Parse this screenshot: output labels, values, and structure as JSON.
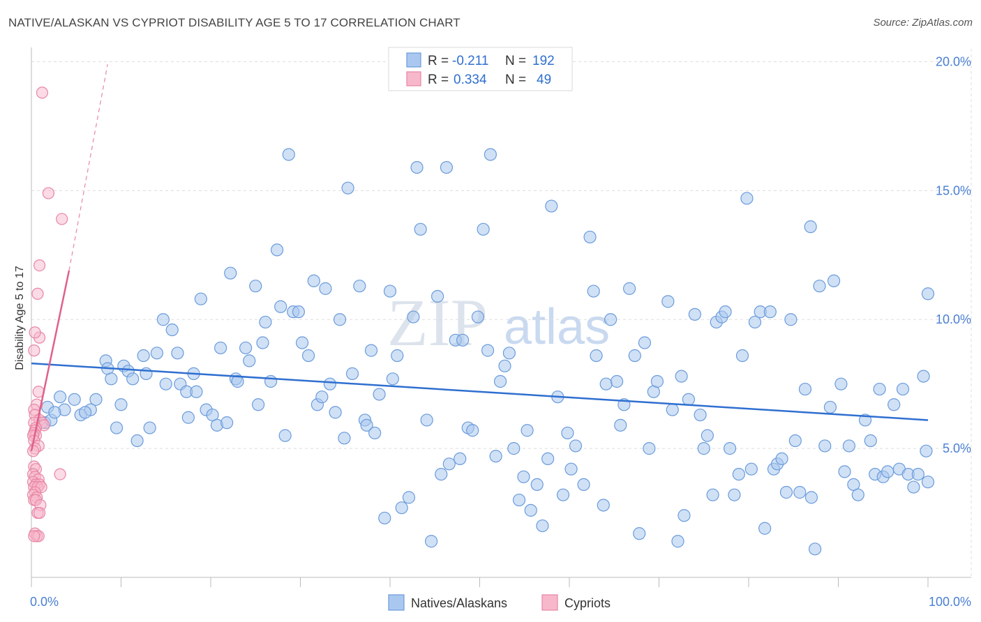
{
  "title": "NATIVE/ALASKAN VS CYPRIOT DISABILITY AGE 5 TO 17 CORRELATION CHART",
  "source": "Source: ZipAtlas.com",
  "watermark": {
    "zip": "ZIP",
    "atlas": "atlas"
  },
  "colors": {
    "native_fill": "#aac8ef",
    "native_stroke": "#6b9bdb",
    "native_line": "#2f6fd0",
    "cypriot_fill": "#f7b8cb",
    "cypriot_stroke": "#e886a4",
    "cypriot_line": "#e0608a",
    "grid": "#dddddd",
    "axis_text": "#4a7fd4"
  },
  "legend": {
    "rows": [
      {
        "r_label": "R =",
        "r_value": "-0.211",
        "n_label": "N =",
        "n_value": "192"
      },
      {
        "r_label": "R =",
        "r_value": "0.334",
        "n_label": "N =",
        "n_value": "49"
      }
    ]
  },
  "bottom_legend": [
    "Natives/Alaskans",
    "Cypriots"
  ],
  "chart_data": {
    "type": "scatter",
    "xlabel": "",
    "ylabel": "Disability Age 5 to 17",
    "xlim": [
      0,
      100
    ],
    "ylim": [
      0,
      20.5
    ],
    "x_tick_labels": [
      "0.0%",
      "100.0%"
    ],
    "y_ticks": [
      5,
      10,
      15,
      20
    ],
    "y_tick_labels": [
      "5.0%",
      "10.0%",
      "15.0%",
      "20.0%"
    ],
    "grid": true,
    "legend_placement": "top-center",
    "series": [
      {
        "name": "Natives/Alaskans",
        "R": -0.211,
        "N": 192,
        "trend": {
          "x": [
            0,
            100
          ],
          "y": [
            8.3,
            6.1
          ]
        },
        "points": [
          [
            1.8,
            6.6
          ],
          [
            3.2,
            7.0
          ],
          [
            1.5,
            6.0
          ],
          [
            2.2,
            6.1
          ],
          [
            3.7,
            6.5
          ],
          [
            2.6,
            6.4
          ],
          [
            4.8,
            6.9
          ],
          [
            5.5,
            6.3
          ],
          [
            7.2,
            6.9
          ],
          [
            6.6,
            6.5
          ],
          [
            6.0,
            6.4
          ],
          [
            8.3,
            8.4
          ],
          [
            8.5,
            8.1
          ],
          [
            8.9,
            7.7
          ],
          [
            9.5,
            5.8
          ],
          [
            10.0,
            6.7
          ],
          [
            10.3,
            8.2
          ],
          [
            10.8,
            8.0
          ],
          [
            11.3,
            7.7
          ],
          [
            11.8,
            5.3
          ],
          [
            12.5,
            8.6
          ],
          [
            12.8,
            7.9
          ],
          [
            13.2,
            5.8
          ],
          [
            14.0,
            8.7
          ],
          [
            14.7,
            10.0
          ],
          [
            15.0,
            7.5
          ],
          [
            15.7,
            9.6
          ],
          [
            16.3,
            8.7
          ],
          [
            16.6,
            7.5
          ],
          [
            17.3,
            7.2
          ],
          [
            17.5,
            6.2
          ],
          [
            18.1,
            7.9
          ],
          [
            18.4,
            7.2
          ],
          [
            18.9,
            10.8
          ],
          [
            19.5,
            6.5
          ],
          [
            20.2,
            6.3
          ],
          [
            20.7,
            5.9
          ],
          [
            21.1,
            8.9
          ],
          [
            21.8,
            6.0
          ],
          [
            22.2,
            11.8
          ],
          [
            22.8,
            7.7
          ],
          [
            23.0,
            7.6
          ],
          [
            23.9,
            8.9
          ],
          [
            24.3,
            8.4
          ],
          [
            25.0,
            11.3
          ],
          [
            25.3,
            6.7
          ],
          [
            25.8,
            9.1
          ],
          [
            26.1,
            9.9
          ],
          [
            26.7,
            7.6
          ],
          [
            27.4,
            12.7
          ],
          [
            27.8,
            10.5
          ],
          [
            28.3,
            5.5
          ],
          [
            28.7,
            16.4
          ],
          [
            29.2,
            10.3
          ],
          [
            29.8,
            10.3
          ],
          [
            30.2,
            9.1
          ],
          [
            30.9,
            8.6
          ],
          [
            31.5,
            11.5
          ],
          [
            31.9,
            6.7
          ],
          [
            32.4,
            7.0
          ],
          [
            32.8,
            11.2
          ],
          [
            33.3,
            7.5
          ],
          [
            33.9,
            6.4
          ],
          [
            34.4,
            10.0
          ],
          [
            34.9,
            5.4
          ],
          [
            35.3,
            15.1
          ],
          [
            35.8,
            7.9
          ],
          [
            36.6,
            11.3
          ],
          [
            37.2,
            6.1
          ],
          [
            37.4,
            5.9
          ],
          [
            37.9,
            8.8
          ],
          [
            38.3,
            5.6
          ],
          [
            38.8,
            7.1
          ],
          [
            39.4,
            2.3
          ],
          [
            40.0,
            11.1
          ],
          [
            40.3,
            7.7
          ],
          [
            40.8,
            8.6
          ],
          [
            41.3,
            2.7
          ],
          [
            42.1,
            3.1
          ],
          [
            42.6,
            10.1
          ],
          [
            43.0,
            15.9
          ],
          [
            43.4,
            13.5
          ],
          [
            44.1,
            6.1
          ],
          [
            44.6,
            1.4
          ],
          [
            45.3,
            10.9
          ],
          [
            45.7,
            4.0
          ],
          [
            46.3,
            15.9
          ],
          [
            46.6,
            4.4
          ],
          [
            47.3,
            9.2
          ],
          [
            47.8,
            4.6
          ],
          [
            48.1,
            9.2
          ],
          [
            48.7,
            5.8
          ],
          [
            49.2,
            5.7
          ],
          [
            49.8,
            10.1
          ],
          [
            50.4,
            13.5
          ],
          [
            50.9,
            8.8
          ],
          [
            51.2,
            16.4
          ],
          [
            51.8,
            4.7
          ],
          [
            52.3,
            7.6
          ],
          [
            52.8,
            8.2
          ],
          [
            53.3,
            8.7
          ],
          [
            53.8,
            5.0
          ],
          [
            54.4,
            3.0
          ],
          [
            54.9,
            3.9
          ],
          [
            55.3,
            5.7
          ],
          [
            55.7,
            2.6
          ],
          [
            56.4,
            3.6
          ],
          [
            57.0,
            2.0
          ],
          [
            57.6,
            4.6
          ],
          [
            58.0,
            14.4
          ],
          [
            58.7,
            7.0
          ],
          [
            59.3,
            3.2
          ],
          [
            59.8,
            5.6
          ],
          [
            60.2,
            4.2
          ],
          [
            60.7,
            5.1
          ],
          [
            61.6,
            3.6
          ],
          [
            62.3,
            13.2
          ],
          [
            62.7,
            11.1
          ],
          [
            63.0,
            8.6
          ],
          [
            63.8,
            2.8
          ],
          [
            64.1,
            7.5
          ],
          [
            64.6,
            10.0
          ],
          [
            65.3,
            7.6
          ],
          [
            65.7,
            5.9
          ],
          [
            66.1,
            6.7
          ],
          [
            66.7,
            11.2
          ],
          [
            67.3,
            8.6
          ],
          [
            67.8,
            1.7
          ],
          [
            68.4,
            9.1
          ],
          [
            68.9,
            5.0
          ],
          [
            69.4,
            7.2
          ],
          [
            69.8,
            7.6
          ],
          [
            71.0,
            10.7
          ],
          [
            71.5,
            6.5
          ],
          [
            72.1,
            1.4
          ],
          [
            72.5,
            7.8
          ],
          [
            72.8,
            2.4
          ],
          [
            73.3,
            6.9
          ],
          [
            74.0,
            10.2
          ],
          [
            74.6,
            6.3
          ],
          [
            75.0,
            5.0
          ],
          [
            75.4,
            5.5
          ],
          [
            76.0,
            3.2
          ],
          [
            76.4,
            9.9
          ],
          [
            77.0,
            10.1
          ],
          [
            77.4,
            10.3
          ],
          [
            77.9,
            5.0
          ],
          [
            78.4,
            3.2
          ],
          [
            78.9,
            4.0
          ],
          [
            79.3,
            8.6
          ],
          [
            79.8,
            14.7
          ],
          [
            80.3,
            4.2
          ],
          [
            80.7,
            9.9
          ],
          [
            81.3,
            10.3
          ],
          [
            81.8,
            1.9
          ],
          [
            82.4,
            10.3
          ],
          [
            82.8,
            4.2
          ],
          [
            83.2,
            4.4
          ],
          [
            83.7,
            4.6
          ],
          [
            84.2,
            3.3
          ],
          [
            84.7,
            10.0
          ],
          [
            85.2,
            5.3
          ],
          [
            85.7,
            3.3
          ],
          [
            86.3,
            7.3
          ],
          [
            86.9,
            13.6
          ],
          [
            87.0,
            3.1
          ],
          [
            87.4,
            1.1
          ],
          [
            87.9,
            11.3
          ],
          [
            88.5,
            5.1
          ],
          [
            89.1,
            6.6
          ],
          [
            89.5,
            11.5
          ],
          [
            90.3,
            7.5
          ],
          [
            90.7,
            4.1
          ],
          [
            91.2,
            5.1
          ],
          [
            91.7,
            3.6
          ],
          [
            92.2,
            3.2
          ],
          [
            93.0,
            6.1
          ],
          [
            93.6,
            5.3
          ],
          [
            94.1,
            4.0
          ],
          [
            94.6,
            7.3
          ],
          [
            95.0,
            3.9
          ],
          [
            95.5,
            4.1
          ],
          [
            96.2,
            6.7
          ],
          [
            96.8,
            4.2
          ],
          [
            97.2,
            7.3
          ],
          [
            97.8,
            4.0
          ],
          [
            98.4,
            3.5
          ],
          [
            98.9,
            4.0
          ],
          [
            99.5,
            7.8
          ],
          [
            100.0,
            3.7
          ],
          [
            99.8,
            4.9
          ],
          [
            100.0,
            11.0
          ]
        ]
      },
      {
        "name": "Cypriots",
        "R": 0.334,
        "N": 49,
        "trend": {
          "x": [
            0,
            4.2
          ],
          "y": [
            4.9,
            11.9
          ]
        },
        "trend_dashed": {
          "x": [
            4.2,
            8.5
          ],
          "y": [
            11.9,
            19.9
          ]
        },
        "points": [
          [
            1.2,
            18.8
          ],
          [
            1.9,
            14.9
          ],
          [
            3.4,
            13.9
          ],
          [
            0.9,
            12.1
          ],
          [
            0.7,
            11.0
          ],
          [
            0.9,
            9.3
          ],
          [
            0.4,
            9.5
          ],
          [
            0.3,
            8.8
          ],
          [
            0.8,
            7.2
          ],
          [
            0.6,
            6.7
          ],
          [
            0.3,
            6.5
          ],
          [
            0.4,
            6.3
          ],
          [
            0.9,
            6.1
          ],
          [
            1.2,
            6.0
          ],
          [
            0.3,
            6.0
          ],
          [
            1.4,
            5.9
          ],
          [
            0.5,
            5.8
          ],
          [
            0.4,
            5.7
          ],
          [
            0.3,
            5.6
          ],
          [
            0.5,
            5.5
          ],
          [
            0.2,
            5.5
          ],
          [
            0.3,
            5.3
          ],
          [
            0.8,
            5.1
          ],
          [
            0.4,
            5.0
          ],
          [
            0.2,
            4.9
          ],
          [
            0.3,
            4.3
          ],
          [
            0.5,
            4.2
          ],
          [
            0.2,
            4.0
          ],
          [
            3.2,
            4.0
          ],
          [
            0.4,
            3.9
          ],
          [
            0.8,
            3.8
          ],
          [
            0.2,
            3.7
          ],
          [
            0.5,
            3.6
          ],
          [
            0.9,
            3.6
          ],
          [
            0.3,
            3.5
          ],
          [
            0.7,
            3.5
          ],
          [
            1.1,
            3.5
          ],
          [
            0.4,
            3.3
          ],
          [
            0.2,
            3.2
          ],
          [
            0.6,
            3.1
          ],
          [
            0.3,
            3.0
          ],
          [
            0.5,
            3.0
          ],
          [
            1.0,
            2.8
          ],
          [
            0.7,
            2.5
          ],
          [
            0.9,
            2.5
          ],
          [
            0.4,
            1.7
          ],
          [
            0.6,
            1.6
          ],
          [
            0.8,
            1.6
          ],
          [
            0.3,
            1.6
          ]
        ]
      }
    ]
  }
}
